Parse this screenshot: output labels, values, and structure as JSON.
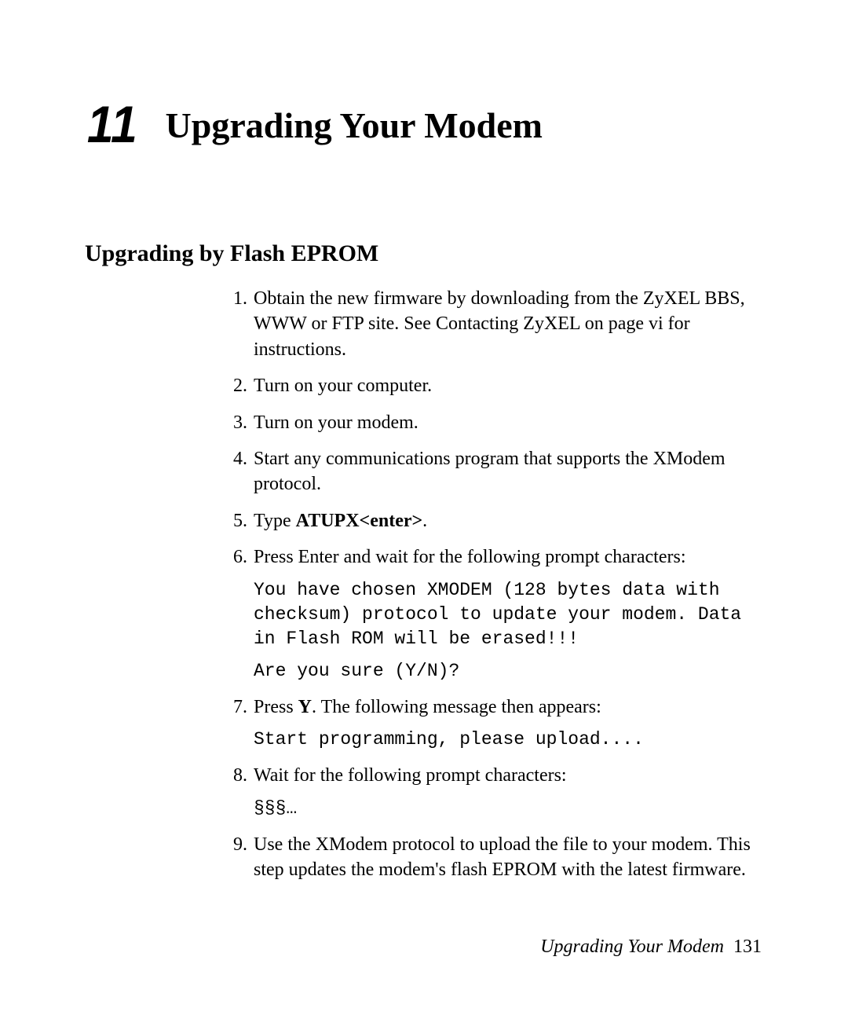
{
  "chapter": {
    "number": "11",
    "title": "Upgrading Your Modem"
  },
  "section": {
    "heading": "Upgrading by Flash EPROM"
  },
  "steps": [
    {
      "n": "1.",
      "text": "Obtain the new firmware by downloading from the ZyXEL BBS, WWW or FTP site. See Contacting ZyXEL on page vi for instructions."
    },
    {
      "n": "2.",
      "text": "Turn on your computer."
    },
    {
      "n": "3.",
      "text": "Turn on your modem."
    },
    {
      "n": "4.",
      "text": "Start any communications program that supports the XModem protocol."
    },
    {
      "n": "5.",
      "pre": "Type ",
      "bold": "ATUPX<enter>",
      "post": "."
    },
    {
      "n": "6.",
      "text": "Press Enter and wait for the following prompt characters:",
      "mono1": "You have chosen XMODEM (128 bytes data with checksum) protocol to update your modem. Data in Flash ROM will be erased!!!",
      "mono2": "Are you sure (Y/N)?"
    },
    {
      "n": "7.",
      "pre": "Press ",
      "bold": "Y",
      "post": ". The following message then appears:",
      "mono1": "Start programming, please upload...."
    },
    {
      "n": "8.",
      "text": "Wait for the following prompt characters:",
      "mono1": "§§§…"
    },
    {
      "n": "9.",
      "text": "Use the XModem protocol to upload the file to your modem. This step updates the modem's flash EPROM with the latest firmware."
    }
  ],
  "footer": {
    "label": "Upgrading Your Modem",
    "page": "131"
  }
}
